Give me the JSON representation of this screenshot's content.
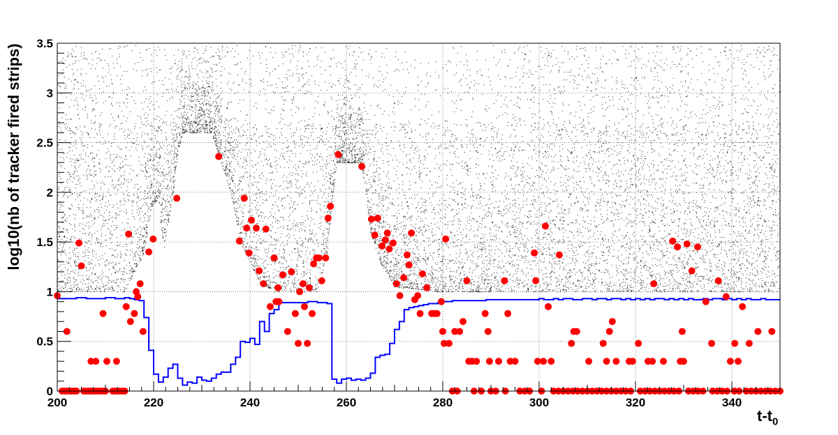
{
  "chart_data": {
    "type": "scatter",
    "title": "",
    "xlabel": "t-t",
    "xlabel_subscript": "0",
    "ylabel": "log10(nb of tracker fired strips)",
    "xlim": [
      200,
      350
    ],
    "ylim": [
      0,
      3.5
    ],
    "grid": true,
    "x_ticks": [
      "200",
      "220",
      "240",
      "260",
      "280",
      "300",
      "320",
      "340"
    ],
    "y_ticks": [
      "0",
      "0.5",
      "1",
      "1.5",
      "2",
      "2.5",
      "3",
      "3.5"
    ],
    "colors": {
      "markers": "#ff0000",
      "histogram": "#0000ff",
      "cloud": "#000000"
    },
    "histogram": {
      "name": "step line",
      "bin_start": 200,
      "bin_width": 1,
      "values": [
        0.93,
        0.93,
        0.93,
        0.93,
        0.94,
        0.94,
        0.93,
        0.93,
        0.93,
        0.93,
        0.94,
        0.94,
        0.93,
        0.93,
        0.94,
        0.93,
        0.92,
        0.91,
        0.74,
        0.41,
        0.17,
        0.09,
        0.14,
        0.23,
        0.27,
        0.13,
        0.06,
        0.09,
        0.08,
        0.14,
        0.11,
        0.1,
        0.13,
        0.17,
        0.19,
        0.19,
        0.27,
        0.34,
        0.5,
        0.49,
        0.53,
        0.47,
        0.7,
        0.6,
        0.78,
        0.82,
        0.89,
        0.89,
        0.89,
        0.89,
        0.89,
        0.89,
        0.9,
        0.9,
        0.89,
        0.89,
        0.88,
        0.12,
        0.08,
        0.12,
        0.13,
        0.11,
        0.12,
        0.11,
        0.13,
        0.18,
        0.34,
        0.36,
        0.37,
        0.48,
        0.62,
        0.7,
        0.82,
        0.84,
        0.85,
        0.86,
        0.87,
        0.88,
        0.88,
        0.89,
        0.9,
        0.9,
        0.91,
        0.91,
        0.91,
        0.91,
        0.91,
        0.91,
        0.91,
        0.92,
        0.92,
        0.92,
        0.92,
        0.92,
        0.92,
        0.92,
        0.92,
        0.92,
        0.92,
        0.92,
        0.93,
        0.92,
        0.92,
        0.93,
        0.92,
        0.93,
        0.93,
        0.92,
        0.92,
        0.93,
        0.93,
        0.92,
        0.93,
        0.93,
        0.92,
        0.93,
        0.93,
        0.92,
        0.93,
        0.92,
        0.93,
        0.92,
        0.93,
        0.92,
        0.93,
        0.93,
        0.92,
        0.93,
        0.92,
        0.93,
        0.92,
        0.93,
        0.92,
        0.92,
        0.93,
        0.92,
        0.93,
        0.93,
        0.92,
        0.93,
        0.92,
        0.93,
        0.92,
        0.93,
        0.92,
        0.92,
        0.93,
        0.92,
        0.92,
        0.92
      ]
    },
    "markers": {
      "name": "red points",
      "points": [
        [
          200,
          0.96
        ],
        [
          202,
          0.6
        ],
        [
          204.5,
          1.49
        ],
        [
          205,
          1.26
        ],
        [
          207,
          0.3
        ],
        [
          208,
          0.3
        ],
        [
          209.5,
          0.78
        ],
        [
          210.3,
          0.3
        ],
        [
          212.3,
          0.3
        ],
        [
          214.8,
          1.58
        ],
        [
          214.3,
          0.85
        ],
        [
          215.2,
          0.7
        ],
        [
          216,
          0.78
        ],
        [
          216.4,
          1.0
        ],
        [
          216.7,
          0.95
        ],
        [
          217.2,
          1.08
        ],
        [
          217.8,
          0.6
        ],
        [
          219,
          1.4
        ],
        [
          219.9,
          1.53
        ],
        [
          224.8,
          1.94
        ],
        [
          233.5,
          2.36
        ],
        [
          237.8,
          1.51
        ],
        [
          238.8,
          1.94
        ],
        [
          239.3,
          1.64
        ],
        [
          239.8,
          1.39
        ],
        [
          240.3,
          1.72
        ],
        [
          241.3,
          1.64
        ],
        [
          241.9,
          1.21
        ],
        [
          242.8,
          1.08
        ],
        [
          243.3,
          1.63
        ],
        [
          244.2,
          0.85
        ],
        [
          245,
          1.34
        ],
        [
          245.4,
          0.9
        ],
        [
          246,
          0.9
        ],
        [
          245.8,
          1.04
        ],
        [
          246.8,
          1.17
        ],
        [
          247.8,
          0.6
        ],
        [
          248.6,
          1.2
        ],
        [
          249.4,
          0.78
        ],
        [
          250,
          0.48
        ],
        [
          250.3,
          1.0
        ],
        [
          251,
          1.08
        ],
        [
          251.3,
          0.85
        ],
        [
          251.9,
          0.48
        ],
        [
          252.3,
          1.04
        ],
        [
          252.9,
          0.78
        ],
        [
          253.2,
          1.28
        ],
        [
          253.8,
          1.34
        ],
        [
          254.3,
          1.34
        ],
        [
          254.9,
          1.11
        ],
        [
          255.7,
          1.34
        ],
        [
          256.2,
          1.74
        ],
        [
          256.7,
          1.86
        ],
        [
          258.3,
          2.38
        ],
        [
          263.2,
          2.26
        ],
        [
          265.2,
          1.73
        ],
        [
          265.9,
          1.57
        ],
        [
          266.5,
          1.74
        ],
        [
          267.4,
          1.46
        ],
        [
          268.1,
          1.52
        ],
        [
          268.5,
          1.59
        ],
        [
          268.9,
          1.43
        ],
        [
          269.7,
          1.49
        ],
        [
          270.4,
          1.08
        ],
        [
          271.1,
          0.96
        ],
        [
          271.9,
          1.14
        ],
        [
          272.6,
          1.37
        ],
        [
          273,
          1.27
        ],
        [
          273.5,
          1.59
        ],
        [
          274.2,
          0.92
        ],
        [
          274.8,
          0.96
        ],
        [
          275.3,
          0.78
        ],
        [
          275.8,
          1.18
        ],
        [
          276.7,
          1.04
        ],
        [
          277.7,
          0.78
        ],
        [
          278.3,
          0.78
        ],
        [
          278.8,
          0.78
        ],
        [
          279.7,
          0.9
        ],
        [
          280,
          0.6
        ],
        [
          280.6,
          1.53
        ],
        [
          280.3,
          0.48
        ],
        [
          281.3,
          0.48
        ],
        [
          282.5,
          0.6
        ],
        [
          283.5,
          0.6
        ],
        [
          284.2,
          0.7
        ],
        [
          285,
          1.11
        ],
        [
          285.4,
          0.3
        ],
        [
          286.1,
          0.3
        ],
        [
          287,
          0.3
        ],
        [
          288.8,
          0.78
        ],
        [
          289.4,
          0.6
        ],
        [
          289.7,
          0.3
        ],
        [
          291.6,
          0.3
        ],
        [
          292.8,
          1.11
        ],
        [
          293.5,
          0.78
        ],
        [
          294,
          0.3
        ],
        [
          295,
          0.3
        ],
        [
          299,
          1.39
        ],
        [
          299.3,
          1.11
        ],
        [
          299.7,
          0.3
        ],
        [
          300.9,
          0.3
        ],
        [
          301.3,
          1.66
        ],
        [
          301.9,
          0.85
        ],
        [
          302.5,
          0.3
        ],
        [
          304.2,
          1.37
        ],
        [
          306.7,
          0.48
        ],
        [
          307.2,
          0.6
        ],
        [
          307.8,
          0.6
        ],
        [
          310.3,
          0.3
        ],
        [
          313.3,
          0.48
        ],
        [
          314,
          0.3
        ],
        [
          314.6,
          0.6
        ],
        [
          315.2,
          0.7
        ],
        [
          316,
          0.3
        ],
        [
          318.7,
          0.3
        ],
        [
          319.4,
          0.3
        ],
        [
          320.6,
          0.48
        ],
        [
          322.6,
          0.3
        ],
        [
          323.5,
          0.3
        ],
        [
          323.8,
          1.08
        ],
        [
          325.8,
          0.3
        ],
        [
          327.7,
          1.51
        ],
        [
          328.7,
          1.45
        ],
        [
          329.3,
          0.3
        ],
        [
          330,
          0.3
        ],
        [
          329.7,
          0.6
        ],
        [
          330.7,
          1.48
        ],
        [
          331.7,
          1.21
        ],
        [
          332.9,
          1.45
        ],
        [
          334.6,
          0.9
        ],
        [
          335.8,
          0.48
        ],
        [
          337.2,
          1.11
        ],
        [
          338.8,
          0.95
        ],
        [
          339.7,
          0.3
        ],
        [
          340.6,
          0.48
        ],
        [
          341.3,
          0.3
        ],
        [
          342.2,
          0.85
        ],
        [
          343.6,
          0.48
        ],
        [
          345.4,
          0.6
        ],
        [
          348.3,
          0.6
        ],
        [
          201,
          0
        ],
        [
          201.5,
          0
        ],
        [
          202,
          0
        ],
        [
          202.5,
          0
        ],
        [
          203,
          0
        ],
        [
          203.5,
          0
        ],
        [
          204,
          0
        ],
        [
          205.5,
          0
        ],
        [
          206,
          0
        ],
        [
          206.5,
          0
        ],
        [
          207,
          0
        ],
        [
          207.5,
          0
        ],
        [
          208,
          0
        ],
        [
          208.5,
          0
        ],
        [
          209,
          0
        ],
        [
          209.5,
          0
        ],
        [
          210,
          0
        ],
        [
          211.5,
          0
        ],
        [
          212,
          0
        ],
        [
          212.5,
          0
        ],
        [
          213,
          0
        ],
        [
          213.5,
          0
        ],
        [
          214,
          0
        ],
        [
          282,
          0
        ],
        [
          283,
          0
        ],
        [
          286.5,
          0
        ],
        [
          288,
          0
        ],
        [
          290,
          0
        ],
        [
          291,
          0
        ],
        [
          293,
          0
        ],
        [
          296,
          0
        ],
        [
          297,
          0
        ],
        [
          298,
          0
        ],
        [
          300.5,
          0
        ],
        [
          303,
          0
        ],
        [
          304,
          0
        ],
        [
          305,
          0
        ],
        [
          306,
          0
        ],
        [
          307,
          0
        ],
        [
          308,
          0
        ],
        [
          309,
          0
        ],
        [
          310,
          0
        ],
        [
          311,
          0
        ],
        [
          312,
          0
        ],
        [
          313,
          0
        ],
        [
          314,
          0
        ],
        [
          315,
          0
        ],
        [
          316,
          0
        ],
        [
          317,
          0
        ],
        [
          318,
          0
        ],
        [
          319,
          0
        ],
        [
          321,
          0
        ],
        [
          322,
          0
        ],
        [
          323,
          0
        ],
        [
          324,
          0
        ],
        [
          325,
          0
        ],
        [
          326,
          0
        ],
        [
          327,
          0
        ],
        [
          328,
          0
        ],
        [
          329,
          0
        ],
        [
          331,
          0
        ],
        [
          332,
          0
        ],
        [
          333,
          0
        ],
        [
          334,
          0
        ],
        [
          336,
          0
        ],
        [
          337,
          0
        ],
        [
          338,
          0
        ],
        [
          339,
          0
        ],
        [
          340.5,
          0
        ],
        [
          341.5,
          0
        ],
        [
          343,
          0
        ],
        [
          344,
          0
        ],
        [
          345,
          0
        ],
        [
          346,
          0
        ],
        [
          347,
          0
        ],
        [
          348,
          0
        ],
        [
          349,
          0
        ],
        [
          350,
          0
        ]
      ]
    },
    "scatter_cloud": {
      "name": "black point cloud (approximate density reconstruction)",
      "lower_edge": [
        [
          200,
          1.0
        ],
        [
          214,
          1.0
        ],
        [
          216,
          1.2
        ],
        [
          218,
          1.4
        ],
        [
          219.5,
          1.85
        ],
        [
          221,
          1.95
        ],
        [
          222,
          1.4
        ],
        [
          223,
          1.7
        ],
        [
          224,
          2.0
        ],
        [
          225,
          2.4
        ],
        [
          226,
          2.6
        ],
        [
          232,
          2.6
        ],
        [
          234,
          2.3
        ],
        [
          236,
          2.0
        ],
        [
          238,
          1.5
        ],
        [
          240,
          1.3
        ],
        [
          242,
          1.1
        ],
        [
          245,
          1.0
        ],
        [
          254,
          1.0
        ],
        [
          256,
          1.4
        ],
        [
          257,
          1.9
        ],
        [
          258,
          2.3
        ],
        [
          263,
          2.3
        ],
        [
          264,
          2.0
        ],
        [
          265,
          1.6
        ],
        [
          267,
          1.3
        ],
        [
          270,
          1.05
        ],
        [
          280,
          1.0
        ],
        [
          350,
          1.0
        ]
      ],
      "dense_ridge_ranges": [
        [
          215,
          246
        ],
        [
          255,
          290
        ]
      ]
    }
  }
}
